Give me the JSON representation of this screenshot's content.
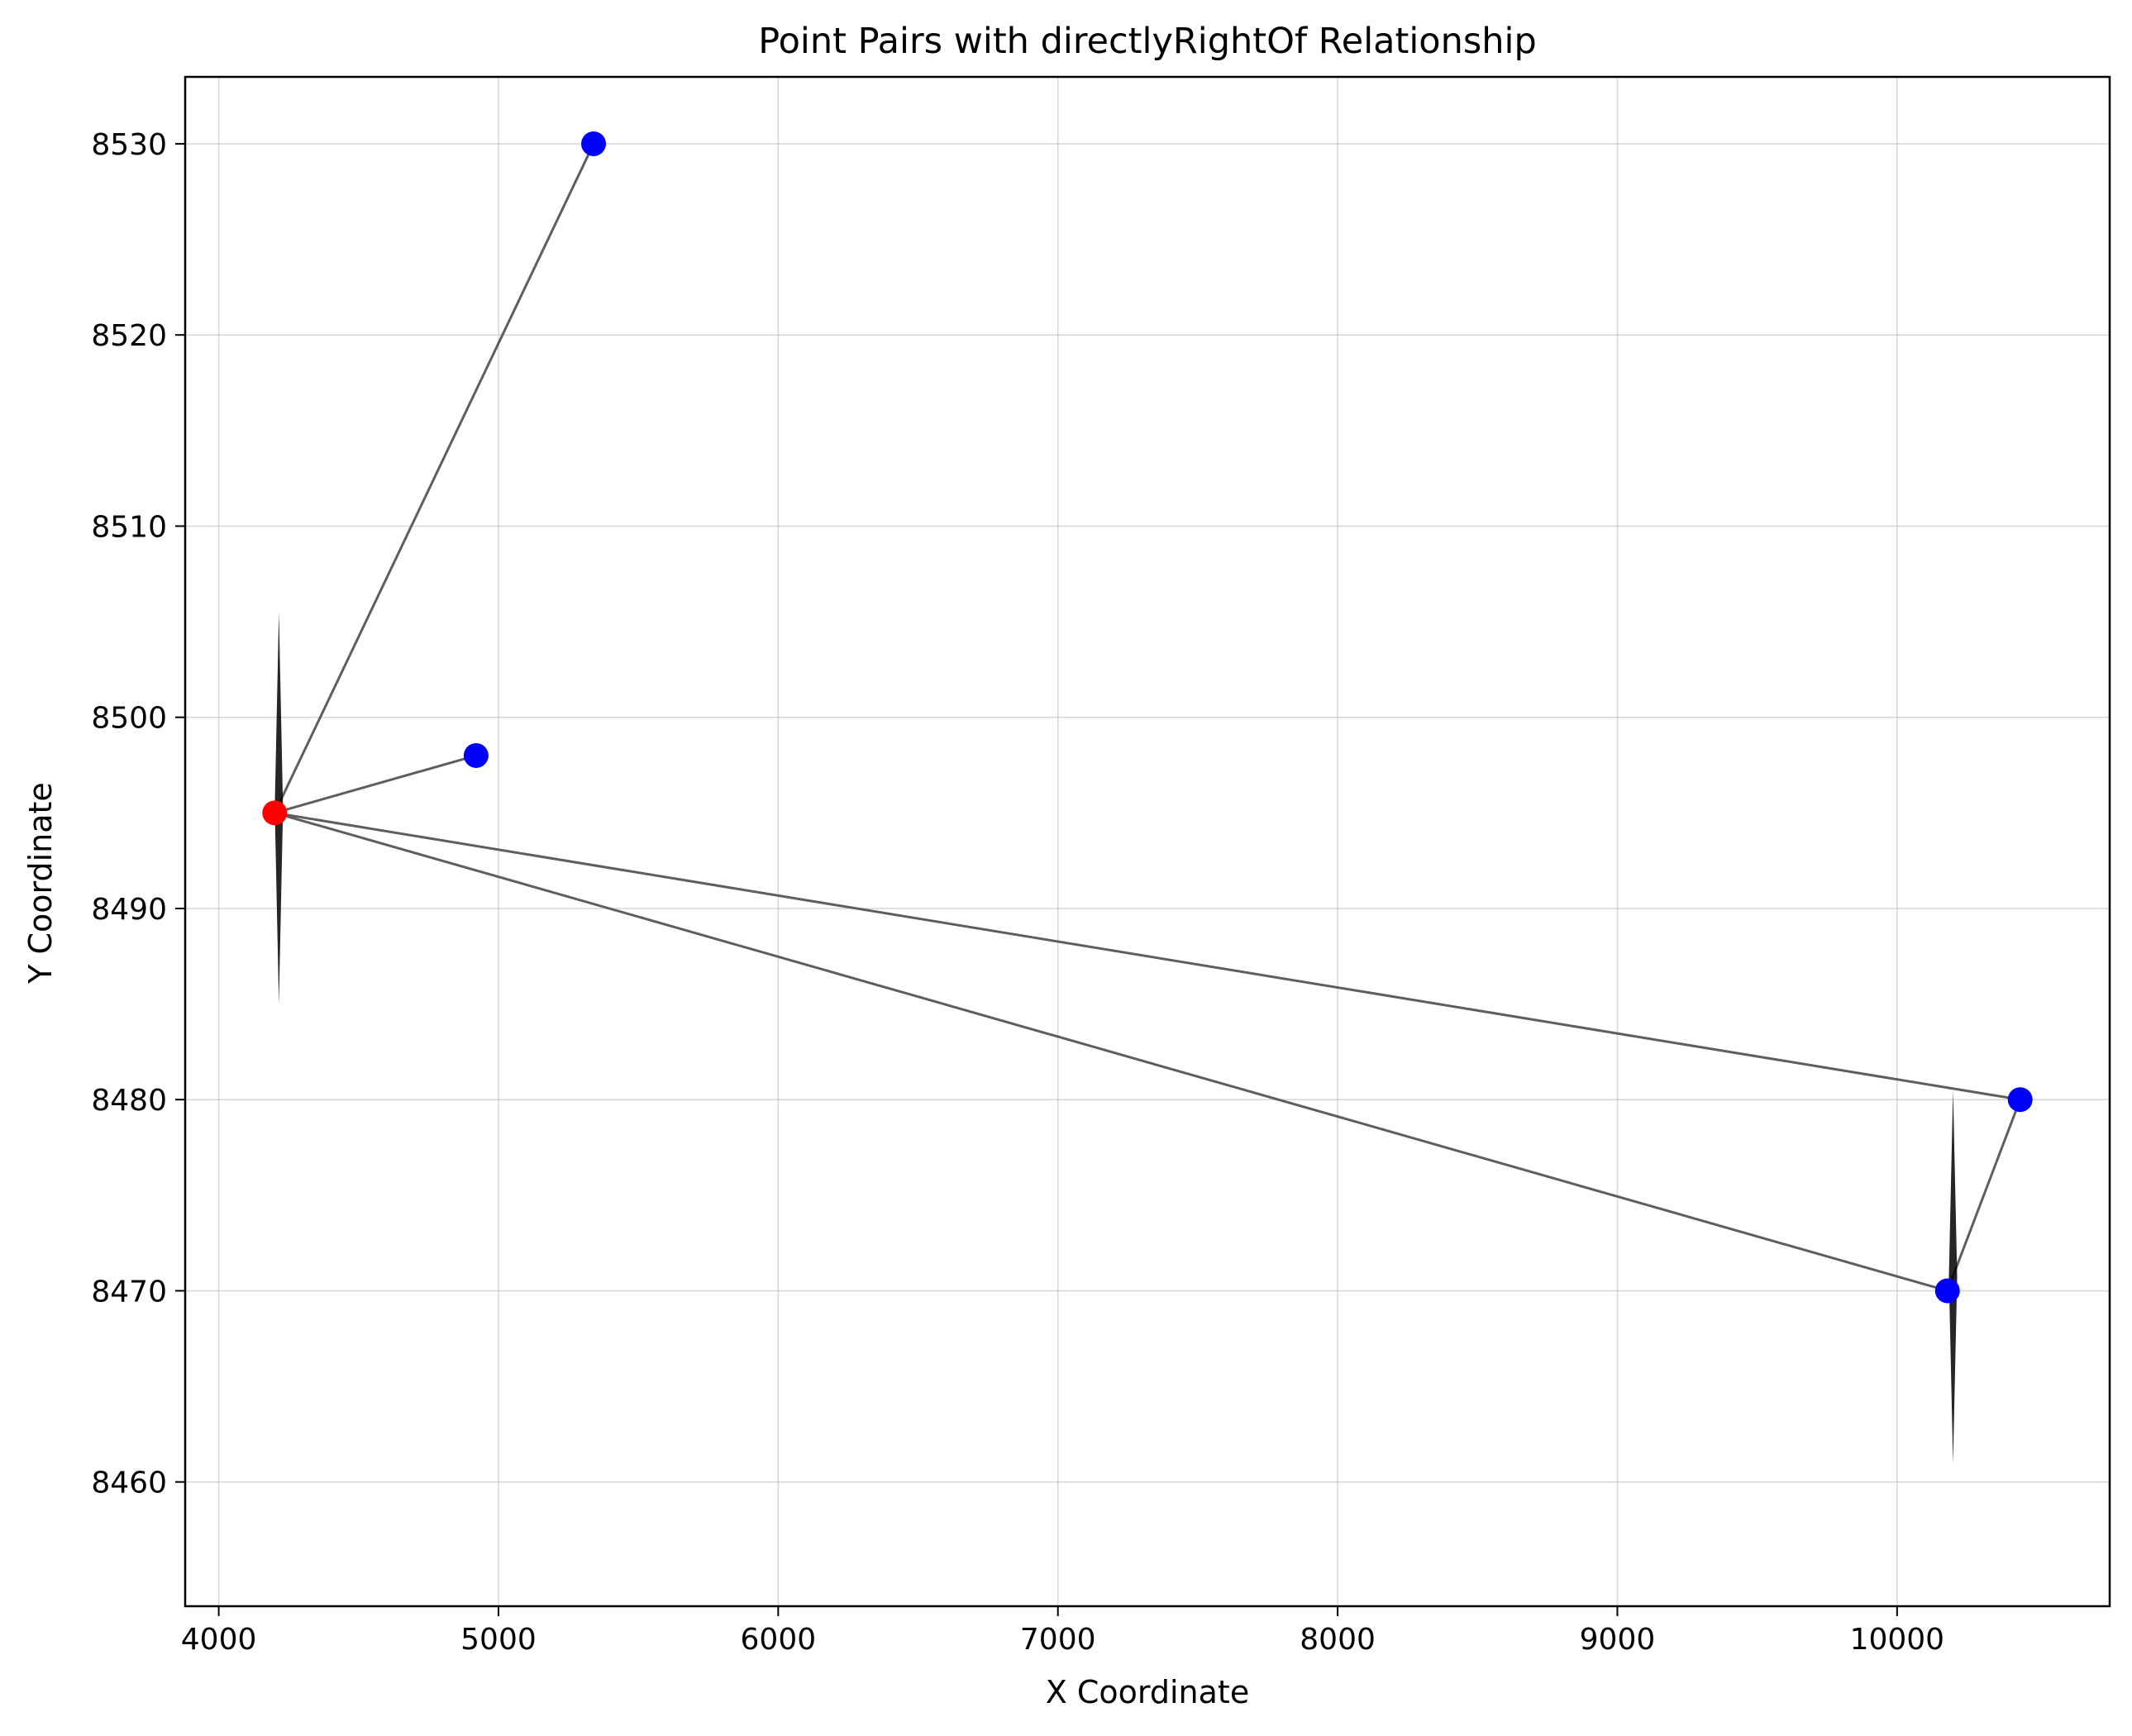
{
  "chart_data": {
    "type": "scatter",
    "title": "Point Pairs with directlyRightOf Relationship",
    "xlabel": "X Coordinate",
    "ylabel": "Y Coordinate",
    "xlim": [
      3880,
      10760
    ],
    "ylim": [
      8453.5,
      8533.5
    ],
    "xticks": [
      4000,
      5000,
      6000,
      7000,
      8000,
      9000,
      10000
    ],
    "yticks": [
      8460,
      8470,
      8480,
      8490,
      8500,
      8510,
      8520,
      8530
    ],
    "grid": true,
    "colors": {
      "reference": "#ff0000",
      "related": "#0000ff",
      "line": "#555555",
      "arrow": "#000000"
    },
    "reference_point": {
      "x": 4200,
      "y": 8495
    },
    "related_points": [
      {
        "x": 5340,
        "y": 8530
      },
      {
        "x": 4920,
        "y": 8498
      },
      {
        "x": 10440,
        "y": 8480
      },
      {
        "x": 10180,
        "y": 8470
      }
    ],
    "connections": [
      {
        "from": [
          4200,
          8495
        ],
        "to": [
          5340,
          8530
        ]
      },
      {
        "from": [
          4200,
          8495
        ],
        "to": [
          4920,
          8498
        ]
      },
      {
        "from": [
          4200,
          8495
        ],
        "to": [
          10440,
          8480
        ]
      },
      {
        "from": [
          4200,
          8495
        ],
        "to": [
          10180,
          8470
        ]
      },
      {
        "from": [
          10180,
          8470
        ],
        "to": [
          10440,
          8480
        ]
      }
    ],
    "vertical_arrows": [
      {
        "x": 4215,
        "y_from": 8485,
        "y_to": 8505.5
      },
      {
        "x": 10200,
        "y_from": 8461,
        "y_to": 8480.5
      }
    ]
  }
}
